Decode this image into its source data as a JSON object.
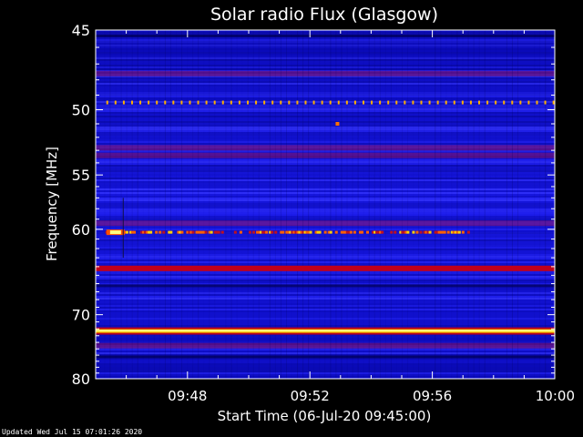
{
  "chart_data": {
    "type": "heatmap",
    "title": "Solar radio Flux (Glasgow)",
    "xlabel": "Start Time (06-Jul-20 09:45:00)",
    "ylabel": "Frequency [MHz]",
    "xlim_minutes_after_0945": [
      0,
      15
    ],
    "x_tick_labels": [
      "09:48",
      "09:52",
      "09:56",
      "10:00"
    ],
    "x_tick_minutes_after_0945": [
      3,
      7,
      11,
      15
    ],
    "ylim": [
      45,
      80
    ],
    "y_scale": "reciprocal",
    "y_ticks": [
      45,
      50,
      55,
      60,
      70,
      80
    ],
    "features": [
      {
        "name": "interference-band",
        "freq_mhz": 64.2,
        "kind": "continuous",
        "level": "high"
      },
      {
        "name": "interference-band",
        "freq_mhz": 72.3,
        "kind": "continuous",
        "level": "max"
      },
      {
        "name": "periodic-dots",
        "freq_mhz": 49.5,
        "kind": "dotted",
        "level": "high"
      },
      {
        "name": "burst-line",
        "freq_mhz": 60.3,
        "kind": "intermittent",
        "level": "high",
        "start": 0.2,
        "end": 12.2
      },
      {
        "name": "bright-spot",
        "freq_mhz": 60.3,
        "kind": "spot",
        "level": "max",
        "time": 0.65
      },
      {
        "name": "isolated-point",
        "freq_mhz": 51.0,
        "kind": "spot",
        "level": "high",
        "time": 7.9
      }
    ],
    "colors": {
      "background": "#1414e6",
      "band": "#b4001e",
      "hot": "#ffe600"
    }
  },
  "footer": {
    "updated": "Updated Wed Jul 15 07:01:26 2020"
  }
}
